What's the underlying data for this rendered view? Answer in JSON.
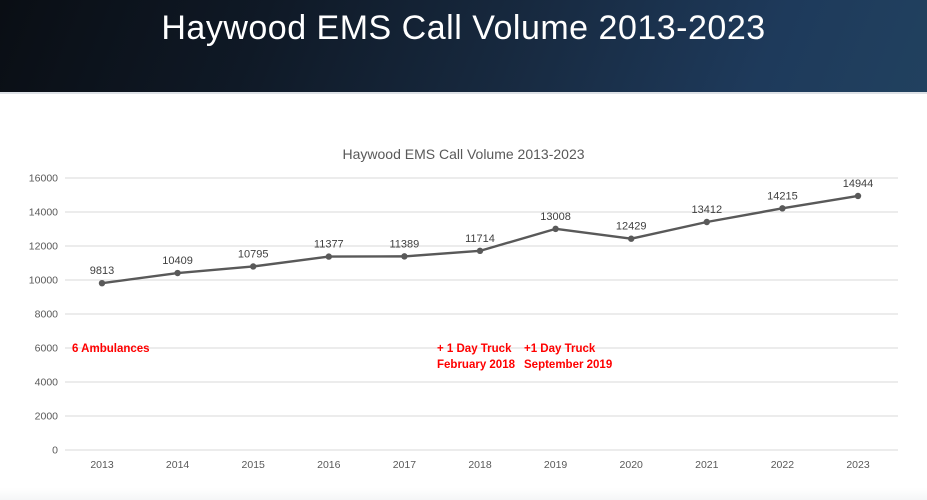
{
  "slide": {
    "title": "Haywood EMS Call Volume 2013-2023",
    "title_color": "#ffffff",
    "header_colors": [
      "#0a0e14",
      "#17293f",
      "#21415f"
    ]
  },
  "chart_data": {
    "type": "line",
    "title": "Haywood EMS Call Volume 2013-2023",
    "categories": [
      "2013",
      "2014",
      "2015",
      "2016",
      "2017",
      "2018",
      "2019",
      "2020",
      "2021",
      "2022",
      "2023"
    ],
    "series": [
      {
        "name": "Haywood EMS Call Volume",
        "values": [
          9813,
          10409,
          10795,
          11377,
          11389,
          11714,
          13008,
          12429,
          13412,
          14215,
          14944
        ]
      }
    ],
    "data_labels": true,
    "xlabel": "",
    "ylabel": "",
    "ylim": [
      0,
      16000
    ],
    "y_ticks": [
      0,
      2000,
      4000,
      6000,
      8000,
      10000,
      12000,
      14000,
      16000
    ],
    "grid": true,
    "legend": "none",
    "line_color": "#595959",
    "marker_color": "#595959",
    "data_label_color": "#404040",
    "tick_color": "#595959",
    "gridline_color": "#d9d9d9",
    "title_color": "#595959"
  },
  "annotations": {
    "color": "#ff0000",
    "ambulances": {
      "text": "6 Ambulances"
    },
    "day_truck_2018": {
      "line1": "+ 1 Day Truck",
      "line2": "February 2018"
    },
    "day_truck_2019": {
      "line1": "+1 Day Truck",
      "line2": "September 2019"
    }
  }
}
